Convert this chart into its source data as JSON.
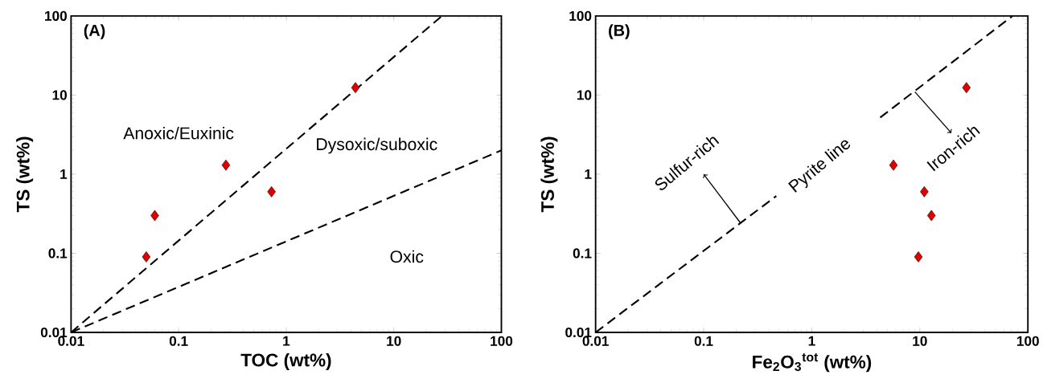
{
  "chart_data": [
    {
      "type": "scatter",
      "title": "(A)",
      "xlabel": "TOC (wt%)",
      "ylabel": "TS (wt%)",
      "log": "xy",
      "xlim": [
        0.01,
        100
      ],
      "ylim": [
        0.01,
        100
      ],
      "xticks": [
        0.01,
        0.1,
        1,
        10,
        100
      ],
      "yticks": [
        0.01,
        0.1,
        1,
        10,
        100
      ],
      "series": [
        {
          "type": "line",
          "color": "#000000",
          "marker": "none",
          "line_style": "dashed",
          "x": [
            0.01,
            28
          ],
          "values": [
            0.01,
            100
          ]
        },
        {
          "type": "line",
          "color": "#000000",
          "marker": "none",
          "line_style": "dashed",
          "x": [
            0.01,
            100
          ],
          "values": [
            0.01,
            2
          ]
        },
        {
          "color": "#e00000",
          "marker": "diamond",
          "x": [
            0.05,
            0.06,
            0.275,
            0.73,
            4.4
          ],
          "values": [
            0.09,
            0.3,
            1.3,
            0.6,
            12.4
          ]
        }
      ],
      "annotations": [
        "Anoxic/Euxinic",
        "Dysoxic/suboxic",
        "Oxic"
      ]
    },
    {
      "type": "scatter",
      "title": "(B)",
      "xlabel": "Fe$_{2}$O$_{3}$$^{tot}$ (wt%)",
      "ylabel": "TS (wt%)",
      "log": "xy",
      "xlim": [
        0.01,
        100
      ],
      "ylim": [
        0.01,
        100
      ],
      "xticks": [
        0.01,
        0.1,
        1,
        10,
        100
      ],
      "yticks": [
        0.01,
        0.1,
        1,
        10,
        100
      ],
      "series": [
        {
          "type": "line",
          "color": "#000000",
          "marker": "none",
          "line_style": "dashed",
          "x": [
            0.01,
            0.47,
            1.5,
            4.3,
            72
          ],
          "values": [
            0.01,
            0.53,
            null,
            5.2,
            100
          ]
        },
        {
          "color": "#e00000",
          "marker": "diamond",
          "x": [
            9.7,
            5.7,
            11,
            12.8,
            27
          ],
          "values": [
            0.09,
            1.3,
            0.6,
            0.3,
            12.4
          ]
        }
      ],
      "annotations": [
        {
          "text": "Sulfur-rich",
          "x": 0.22,
          "y": 0.24
        },
        "Pyrite line",
        {
          "text": "Iron-rich",
          "x": 9,
          "y": 11
        }
      ]
    }
  ]
}
